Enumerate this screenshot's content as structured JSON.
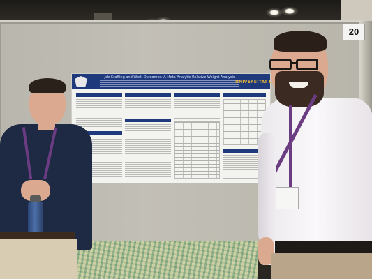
{
  "board_number": "20",
  "poster": {
    "title": "Job Crafting and Work Outcomes: A Meta-Analytic Relative Weight Analysis",
    "institution": "UNIVERSITAT LE"
  },
  "colors": {
    "poster_header": "#1f3a7c",
    "institution_text": "#e3b23c",
    "board": "#c0bdb4",
    "lanyard": "#6b3c82"
  }
}
